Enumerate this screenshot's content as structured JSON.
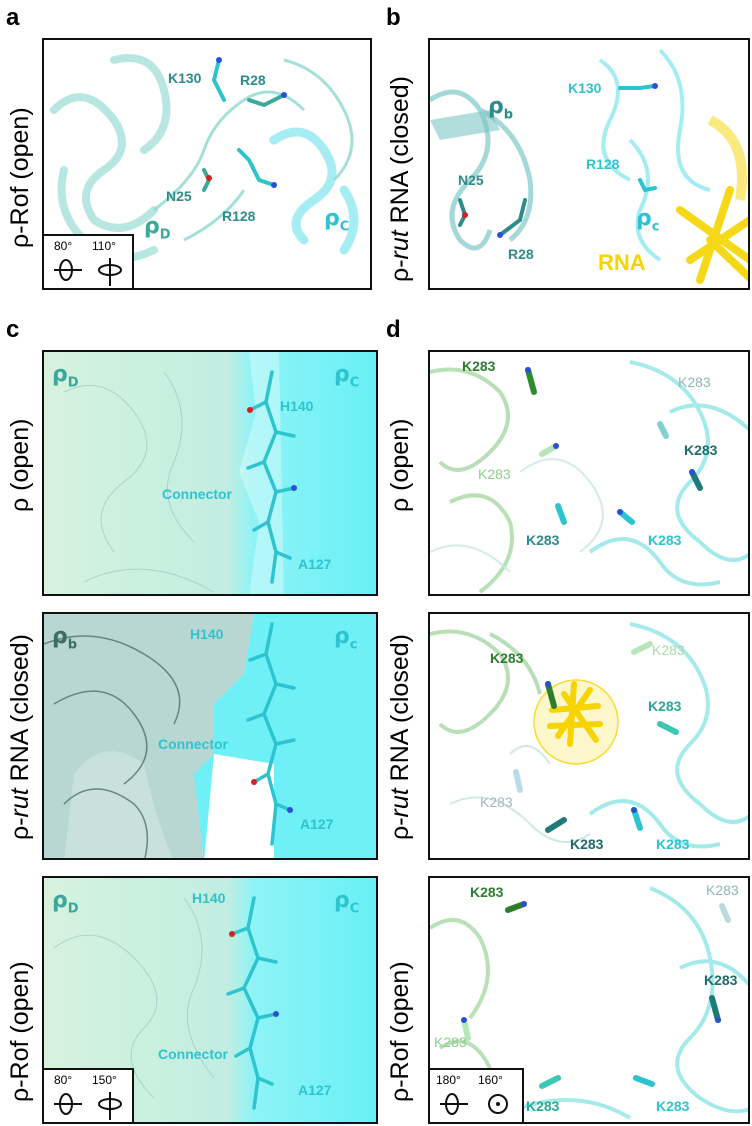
{
  "panel_letters": {
    "a": "a",
    "b": "b",
    "c": "c",
    "d": "d"
  },
  "row_labels": {
    "a": {
      "pre": "ρ-Rof (open)",
      "em": "",
      "post": ""
    },
    "b": {
      "pre": "ρ-",
      "em": "rut",
      "post": " RNA (closed)"
    },
    "c1": {
      "pre": "ρ (open)",
      "em": "",
      "post": ""
    },
    "c2": {
      "pre": "ρ-",
      "em": "rut",
      "post": " RNA (closed)"
    },
    "c3": {
      "pre": "ρ-Rof (open)",
      "em": "",
      "post": ""
    }
  },
  "panel_a": {
    "residues": [
      "K130",
      "R28",
      "N25",
      "R128"
    ],
    "chains": [
      {
        "sym": "ρ",
        "sub": "D"
      },
      {
        "sym": "ρ",
        "sub": "C"
      }
    ],
    "rotation": [
      "80°",
      "110°"
    ]
  },
  "panel_b": {
    "residues": [
      "K130",
      "N25",
      "R28",
      "R128"
    ],
    "chains": [
      {
        "sym": "ρ",
        "sub": "b"
      },
      {
        "sym": "ρ",
        "sub": "c"
      }
    ],
    "rna_label": "RNA"
  },
  "panel_c": {
    "top": {
      "chains": [
        {
          "sym": "ρ",
          "sub": "D"
        },
        {
          "sym": "ρ",
          "sub": "C"
        }
      ],
      "residues": [
        "H140",
        "Connector",
        "A127"
      ]
    },
    "middle": {
      "chains": [
        {
          "sym": "ρ",
          "sub": "b"
        },
        {
          "sym": "ρ",
          "sub": "c"
        }
      ],
      "residues": [
        "H140",
        "Connector",
        "A127"
      ]
    },
    "bottom": {
      "chains": [
        {
          "sym": "ρ",
          "sub": "D"
        },
        {
          "sym": "ρ",
          "sub": "C"
        }
      ],
      "residues": [
        "H140",
        "Connector",
        "A127"
      ],
      "rotation": [
        "80°",
        "150°"
      ]
    }
  },
  "panel_d": {
    "top": {
      "residues": [
        "K283",
        "K283",
        "K283",
        "K283",
        "K283",
        "K283"
      ]
    },
    "middle": {
      "residues": [
        "K283",
        "K283",
        "K283",
        "K283",
        "K283",
        "K283"
      ]
    },
    "bottom": {
      "residues": [
        "K283",
        "K283",
        "K283",
        "K283",
        "K283",
        "K283"
      ],
      "rotation": [
        "180°",
        "160°"
      ]
    }
  },
  "colors": {
    "teal_dark": "#2e8b8b",
    "cyan": "#2ec4cf",
    "green": "#3b9a3b",
    "rna_yellow": "#f5d400"
  }
}
